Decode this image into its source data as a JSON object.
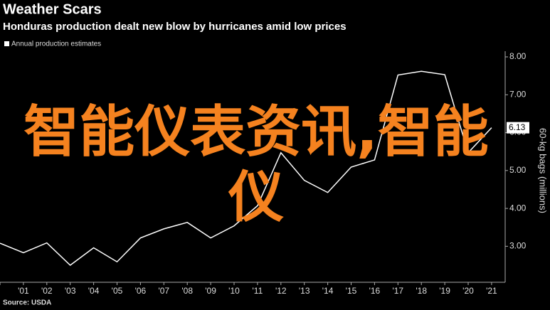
{
  "chart_data": {
    "type": "line",
    "title": "Weather Scars",
    "subtitle": "Honduras production dealt new blow by hurricanes amid low prices",
    "y_axis_label": "60-kg bags (millions)",
    "source": "Source: USDA",
    "annotations": [
      "智能仪表资讯,智能",
      "仪"
    ],
    "categories": [
      null,
      "'01",
      "'02",
      "'03",
      "'04",
      "'05",
      "'06",
      "'07",
      "'08",
      "'09",
      "'10",
      "'11",
      "'12",
      "'13",
      "'14",
      "'15",
      "'16",
      "'17",
      "'18",
      "'19",
      "'20",
      "'21"
    ],
    "series": [
      {
        "name": "Annual production estimates",
        "color": "#ffffff",
        "values": [
          3.08,
          2.83,
          3.09,
          2.5,
          2.96,
          2.59,
          3.22,
          3.46,
          3.63,
          3.22,
          3.54,
          4.07,
          5.47,
          4.74,
          4.42,
          5.09,
          5.28,
          7.52,
          7.62,
          7.53,
          5.47,
          6.13
        ]
      }
    ],
    "ylim": [
      2.05,
      8.15
    ],
    "yticks": [
      {
        "value": 3,
        "label": "3.00"
      },
      {
        "value": 4,
        "label": "4.00"
      },
      {
        "value": 5,
        "label": "5.00"
      },
      {
        "value": 6,
        "label": "6.00"
      },
      {
        "value": 7,
        "label": "7.00"
      },
      {
        "value": 8,
        "label": "8.00"
      }
    ],
    "grid": false,
    "annotation_color": "#f5821f"
  }
}
